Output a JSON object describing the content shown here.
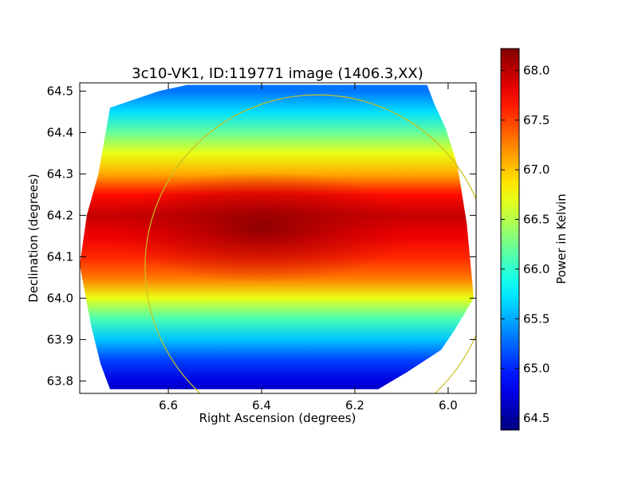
{
  "chart_data": {
    "type": "heatmap",
    "title": "3c10-VK1, ID:119771 image (1406.3,XX)",
    "xlabel": "Right Ascension (degrees)",
    "ylabel": "Declination (degrees)",
    "xlim": [
      6.79,
      5.94
    ],
    "ylim": [
      63.77,
      64.52
    ],
    "x_ticks": [
      6.6,
      6.4,
      6.2,
      6.0
    ],
    "x_tick_labels": [
      "6.6",
      "6.4",
      "6.2",
      "6.0"
    ],
    "y_ticks": [
      63.8,
      63.9,
      64.0,
      64.1,
      64.2,
      64.3,
      64.4,
      64.5
    ],
    "y_tick_labels": [
      "63.8",
      "63.9",
      "64.0",
      "64.1",
      "64.2",
      "64.3",
      "64.4",
      "64.5"
    ],
    "colorbar": {
      "label": "Power in Kelvin",
      "range": [
        64.38,
        68.22
      ],
      "ticks": [
        64.5,
        65.0,
        65.5,
        66.0,
        66.5,
        67.0,
        67.5,
        68.0
      ],
      "tick_labels": [
        "64.5",
        "65.0",
        "65.5",
        "66.0",
        "66.5",
        "67.0",
        "67.5",
        "68.0"
      ],
      "colormap": "jet"
    },
    "field_boundary": [
      [
        6.725,
        64.46
      ],
      [
        6.62,
        64.5
      ],
      [
        6.56,
        64.515
      ],
      [
        6.045,
        64.515
      ],
      [
        6.03,
        64.47
      ],
      [
        6.005,
        64.41
      ],
      [
        5.98,
        64.32
      ],
      [
        5.96,
        64.18
      ],
      [
        5.945,
        64.0
      ],
      [
        5.985,
        63.925
      ],
      [
        6.015,
        63.875
      ],
      [
        6.09,
        63.82
      ],
      [
        6.15,
        63.78
      ],
      [
        6.725,
        63.78
      ],
      [
        6.745,
        63.84
      ],
      [
        6.765,
        63.93
      ],
      [
        6.78,
        64.02
      ],
      [
        6.79,
        64.08
      ],
      [
        6.775,
        64.2
      ],
      [
        6.75,
        64.3
      ]
    ],
    "emission_profile_by_dec": [
      [
        63.77,
        64.6
      ],
      [
        63.8,
        64.75
      ],
      [
        63.85,
        65.1
      ],
      [
        63.9,
        65.6
      ],
      [
        63.95,
        66.1
      ],
      [
        64.0,
        66.7
      ],
      [
        64.05,
        67.3
      ],
      [
        64.1,
        67.6
      ],
      [
        64.15,
        67.8
      ],
      [
        64.2,
        67.95
      ],
      [
        64.25,
        67.7
      ],
      [
        64.3,
        67.1
      ],
      [
        64.35,
        66.7
      ],
      [
        64.4,
        66.2
      ],
      [
        64.45,
        65.7
      ],
      [
        64.5,
        65.3
      ]
    ],
    "peak_region": {
      "ra": 6.4,
      "dec": 64.2,
      "value": 68.2
    },
    "beam_circle": {
      "center_ra": 6.28,
      "center_dec": 64.075,
      "radius_deg": 0.37,
      "color": "#c8c020"
    }
  }
}
